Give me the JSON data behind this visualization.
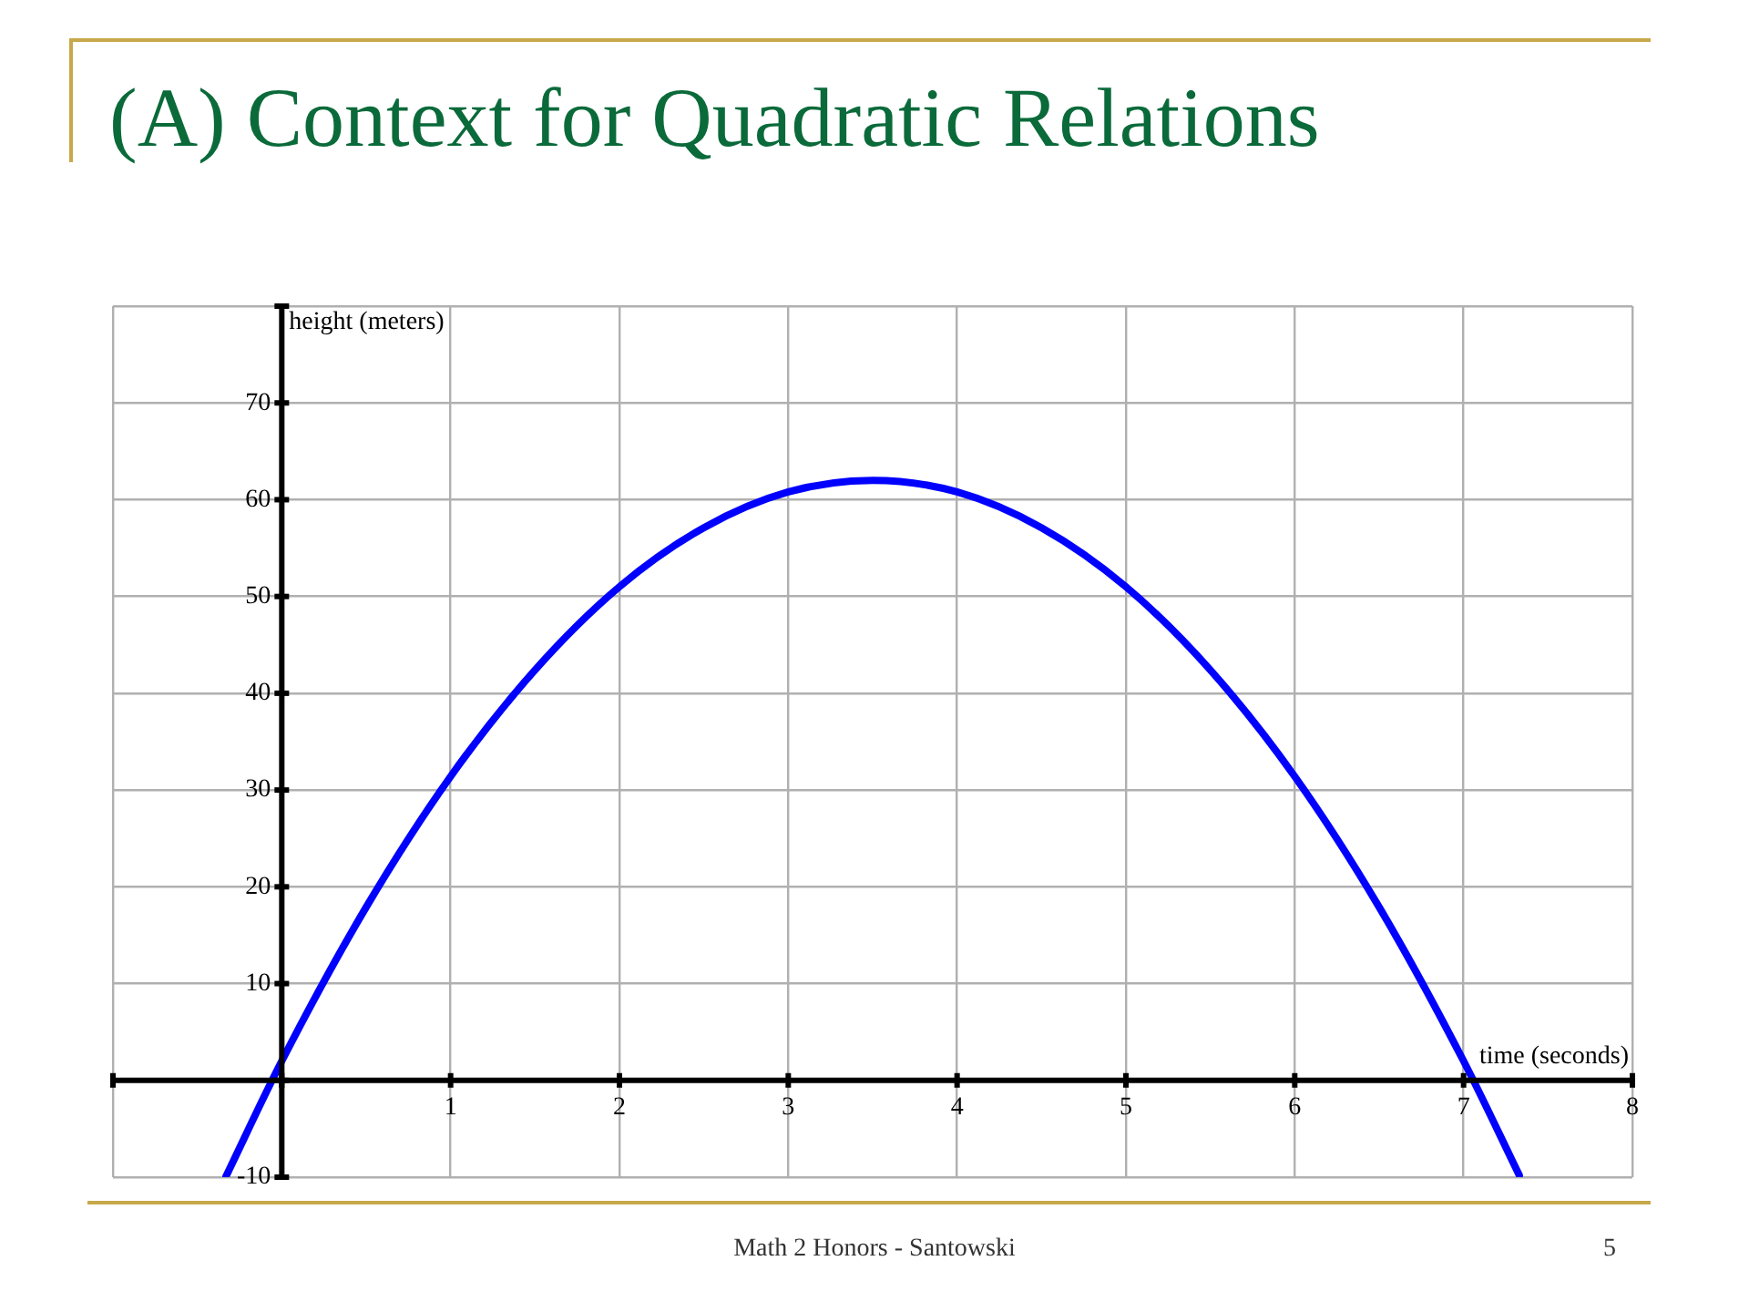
{
  "chart_data": {
    "type": "line",
    "title": "(A) Context for Quadratic Relations",
    "xlabel": "time (seconds)",
    "ylabel": "height (meters)",
    "x": [
      -0.33,
      0,
      0.5,
      1,
      1.5,
      2,
      2.5,
      3,
      3.5,
      4,
      4.5,
      5,
      5.5,
      6,
      6.5,
      7,
      7.33
    ],
    "series": [
      {
        "color": "#0000ff",
        "values": [
          -9.9,
          2,
          17.9,
          31.4,
          42.4,
          51,
          57.1,
          60.8,
          62,
          60.8,
          57.1,
          51,
          42.4,
          31.4,
          17.9,
          2,
          -9.8
        ]
      }
    ],
    "xlim": [
      -1,
      8
    ],
    "ylim": [
      -10,
      80
    ],
    "xticks": [
      {
        "value": -1,
        "label": null
      },
      {
        "value": 0,
        "label": null
      },
      1,
      2,
      3,
      4,
      5,
      6,
      7,
      8
    ],
    "yticks": [
      -10,
      {
        "value": 0,
        "label": null
      },
      10,
      20,
      30,
      40,
      50,
      60,
      70,
      {
        "value": 80,
        "label": null
      }
    ],
    "grid": true,
    "marker": "none",
    "line_style": "solid",
    "annotations": [
      "Math 2 Honors - Santowski",
      "5"
    ]
  }
}
